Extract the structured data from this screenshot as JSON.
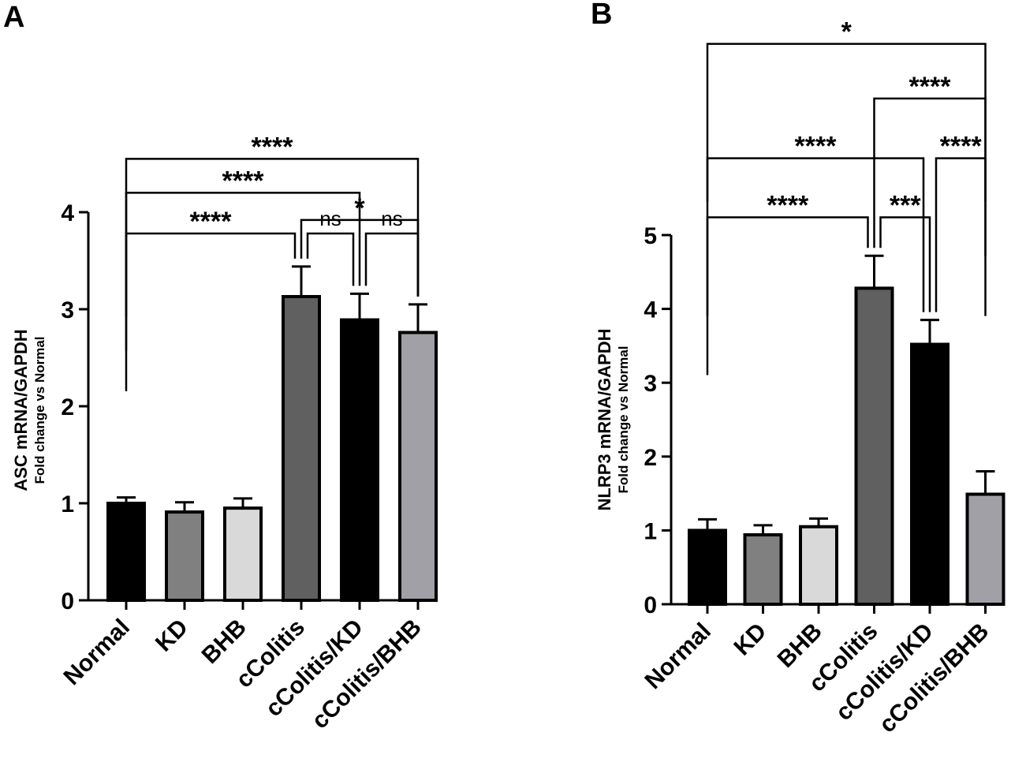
{
  "chart_data": [
    {
      "type": "bar",
      "panel_label": "A",
      "categories": [
        "Normal",
        "KD",
        "BHB",
        "cColitis",
        "cColitis/KD",
        "cColitis/BHB"
      ],
      "values": [
        1.0,
        0.91,
        0.95,
        3.13,
        2.89,
        2.76
      ],
      "errors": [
        0.06,
        0.1,
        0.1,
        0.31,
        0.27,
        0.29
      ],
      "bar_colors": [
        "#000000",
        "#808080",
        "#d9d9d9",
        "#606060",
        "#000000",
        "#a0a0a6"
      ],
      "ylabel": "ASC mRNA/GAPDH",
      "ylabel_sub": "Fold change vs Normal",
      "ylim": [
        0,
        4
      ],
      "yticks": [
        0,
        1,
        2,
        3,
        4
      ],
      "significance": [
        {
          "from": 0,
          "to": 5,
          "label": "****",
          "y": 4.55
        },
        {
          "from": 0,
          "to": 4,
          "label": "****",
          "y": 4.2
        },
        {
          "from": 3,
          "to": 5,
          "label": "*",
          "y": 3.92
        },
        {
          "from": 0,
          "to": 3,
          "label": "****",
          "y": 3.78
        },
        {
          "from": 3,
          "to": 4,
          "label": "ns",
          "y": 3.78
        },
        {
          "from": 4,
          "to": 5,
          "label": "ns",
          "y": 3.78
        }
      ]
    },
    {
      "type": "bar",
      "panel_label": "B",
      "categories": [
        "Normal",
        "KD",
        "BHB",
        "cColitis",
        "cColitis/KD",
        "cColitis/BHB"
      ],
      "values": [
        1.0,
        0.94,
        1.05,
        4.28,
        3.52,
        1.49
      ],
      "errors": [
        0.15,
        0.13,
        0.11,
        0.44,
        0.33,
        0.31
      ],
      "bar_colors": [
        "#000000",
        "#808080",
        "#d9d9d9",
        "#606060",
        "#000000",
        "#a0a0a6"
      ],
      "ylabel": "NLRP3 mRNA/GAPDH",
      "ylabel_sub": "Fold change vs Normal",
      "ylim": [
        0,
        5
      ],
      "yticks": [
        0,
        1,
        2,
        3,
        4,
        5
      ],
      "significance": [
        {
          "from": 0,
          "to": 5,
          "label": "*",
          "y": 7.59
        },
        {
          "from": 3,
          "to": 5,
          "label": "****",
          "y": 6.85
        },
        {
          "from": 0,
          "to": 4,
          "label": "****",
          "y": 6.04
        },
        {
          "from": 4,
          "to": 5,
          "label": "****",
          "y": 6.04
        },
        {
          "from": 0,
          "to": 3,
          "label": "****",
          "y": 5.24
        },
        {
          "from": 3,
          "to": 4,
          "label": "***",
          "y": 5.24
        }
      ]
    }
  ]
}
